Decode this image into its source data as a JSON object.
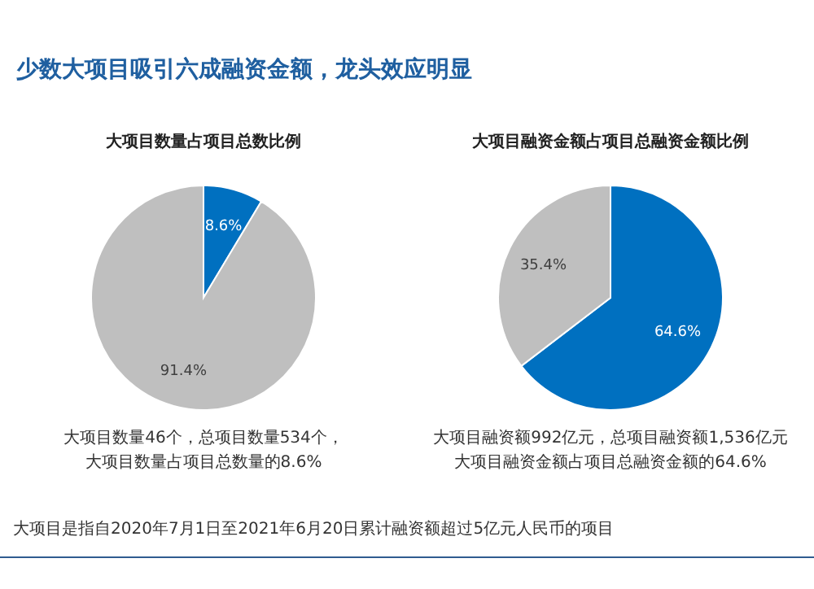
{
  "chart_data": [
    {
      "type": "other",
      "title": "少数大项目吸引六成融资金额，龙头效应明显",
      "annotations": [
        "大项目是指自2020年7月1日至2021年6月20日累计融资额超过5亿元人民币的项目"
      ]
    },
    {
      "type": "pie",
      "title": "大项目数量占项目总数比例",
      "categories": [
        null,
        null
      ],
      "values": [
        8.6,
        91.4
      ],
      "colors": [
        "#0070c0",
        "#bfbfbf"
      ],
      "value_labels": [
        "8.6%",
        "91.4%"
      ],
      "annotations": [
        "大项目数量46个，总项目数量534个，",
        "大项目数量占项目总数量的8.6%"
      ]
    },
    {
      "type": "pie",
      "title": "大项目融资金额占项目总融资金额比例",
      "categories": [
        null,
        null
      ],
      "values": [
        64.6,
        35.4
      ],
      "colors": [
        "#0070c0",
        "#bfbfbf"
      ],
      "value_labels": [
        "64.6%",
        "35.4%"
      ],
      "annotations": [
        "大项目融资额992亿元，总项目融资额1,536亿元",
        "大项目融资金额占项目总融资金额的64.6%"
      ]
    }
  ]
}
